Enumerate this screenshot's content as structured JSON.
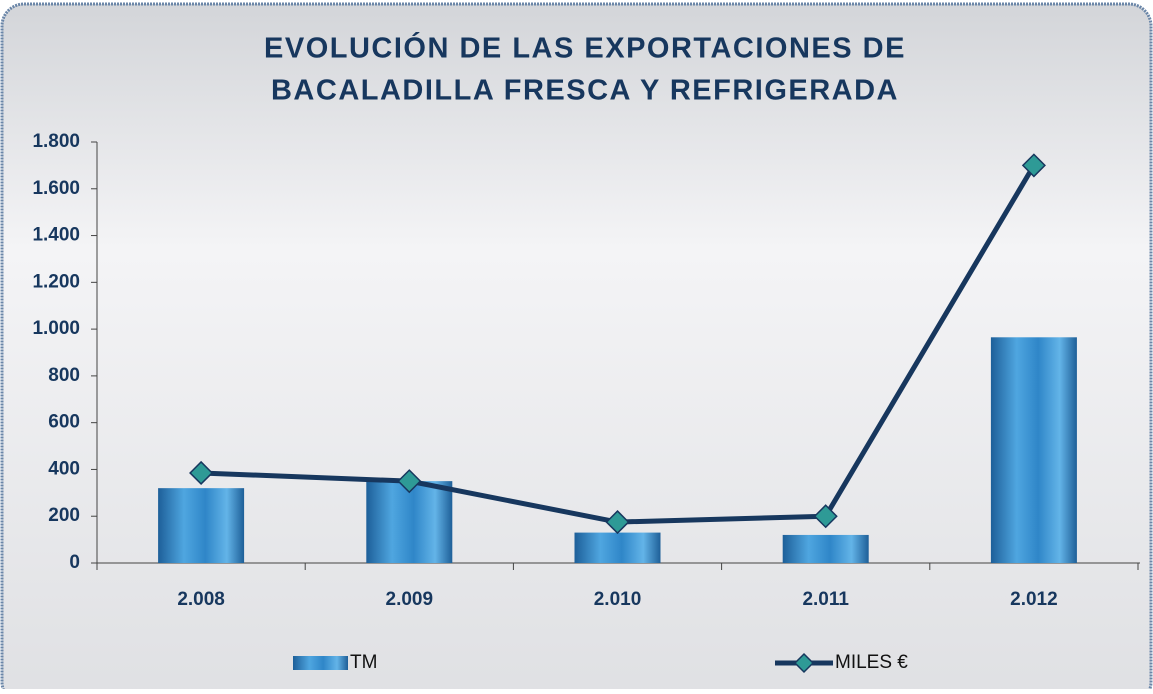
{
  "chart_data": {
    "type": "bar",
    "title": [
      "EVOLUCIÓN DE LAS EXPORTACIONES DE",
      "BACALADILLA FRESCA Y REFRIGERADA"
    ],
    "categories": [
      "2.008",
      "2.009",
      "2.010",
      "2.011",
      "2.012"
    ],
    "series": [
      {
        "name": "TM",
        "type": "bar",
        "color": "#3a8fd0",
        "values": [
          320,
          350,
          130,
          120,
          965
        ]
      },
      {
        "name": "MILES €",
        "type": "line",
        "color": "#17375e",
        "marker_color": "#2e9a96",
        "values": [
          385,
          350,
          175,
          200,
          1700
        ]
      }
    ],
    "ylim": [
      0,
      1800
    ],
    "yticks": [
      0,
      200,
      400,
      600,
      800,
      {
        "value": 1000,
        "label": "1.000"
      },
      {
        "value": 1200,
        "label": "1.200"
      },
      {
        "value": 1400,
        "label": "1.400"
      },
      {
        "value": 1600,
        "label": "1.600"
      },
      {
        "value": 1800,
        "label": "1.800"
      }
    ],
    "grid": false,
    "legend": "bottom"
  }
}
